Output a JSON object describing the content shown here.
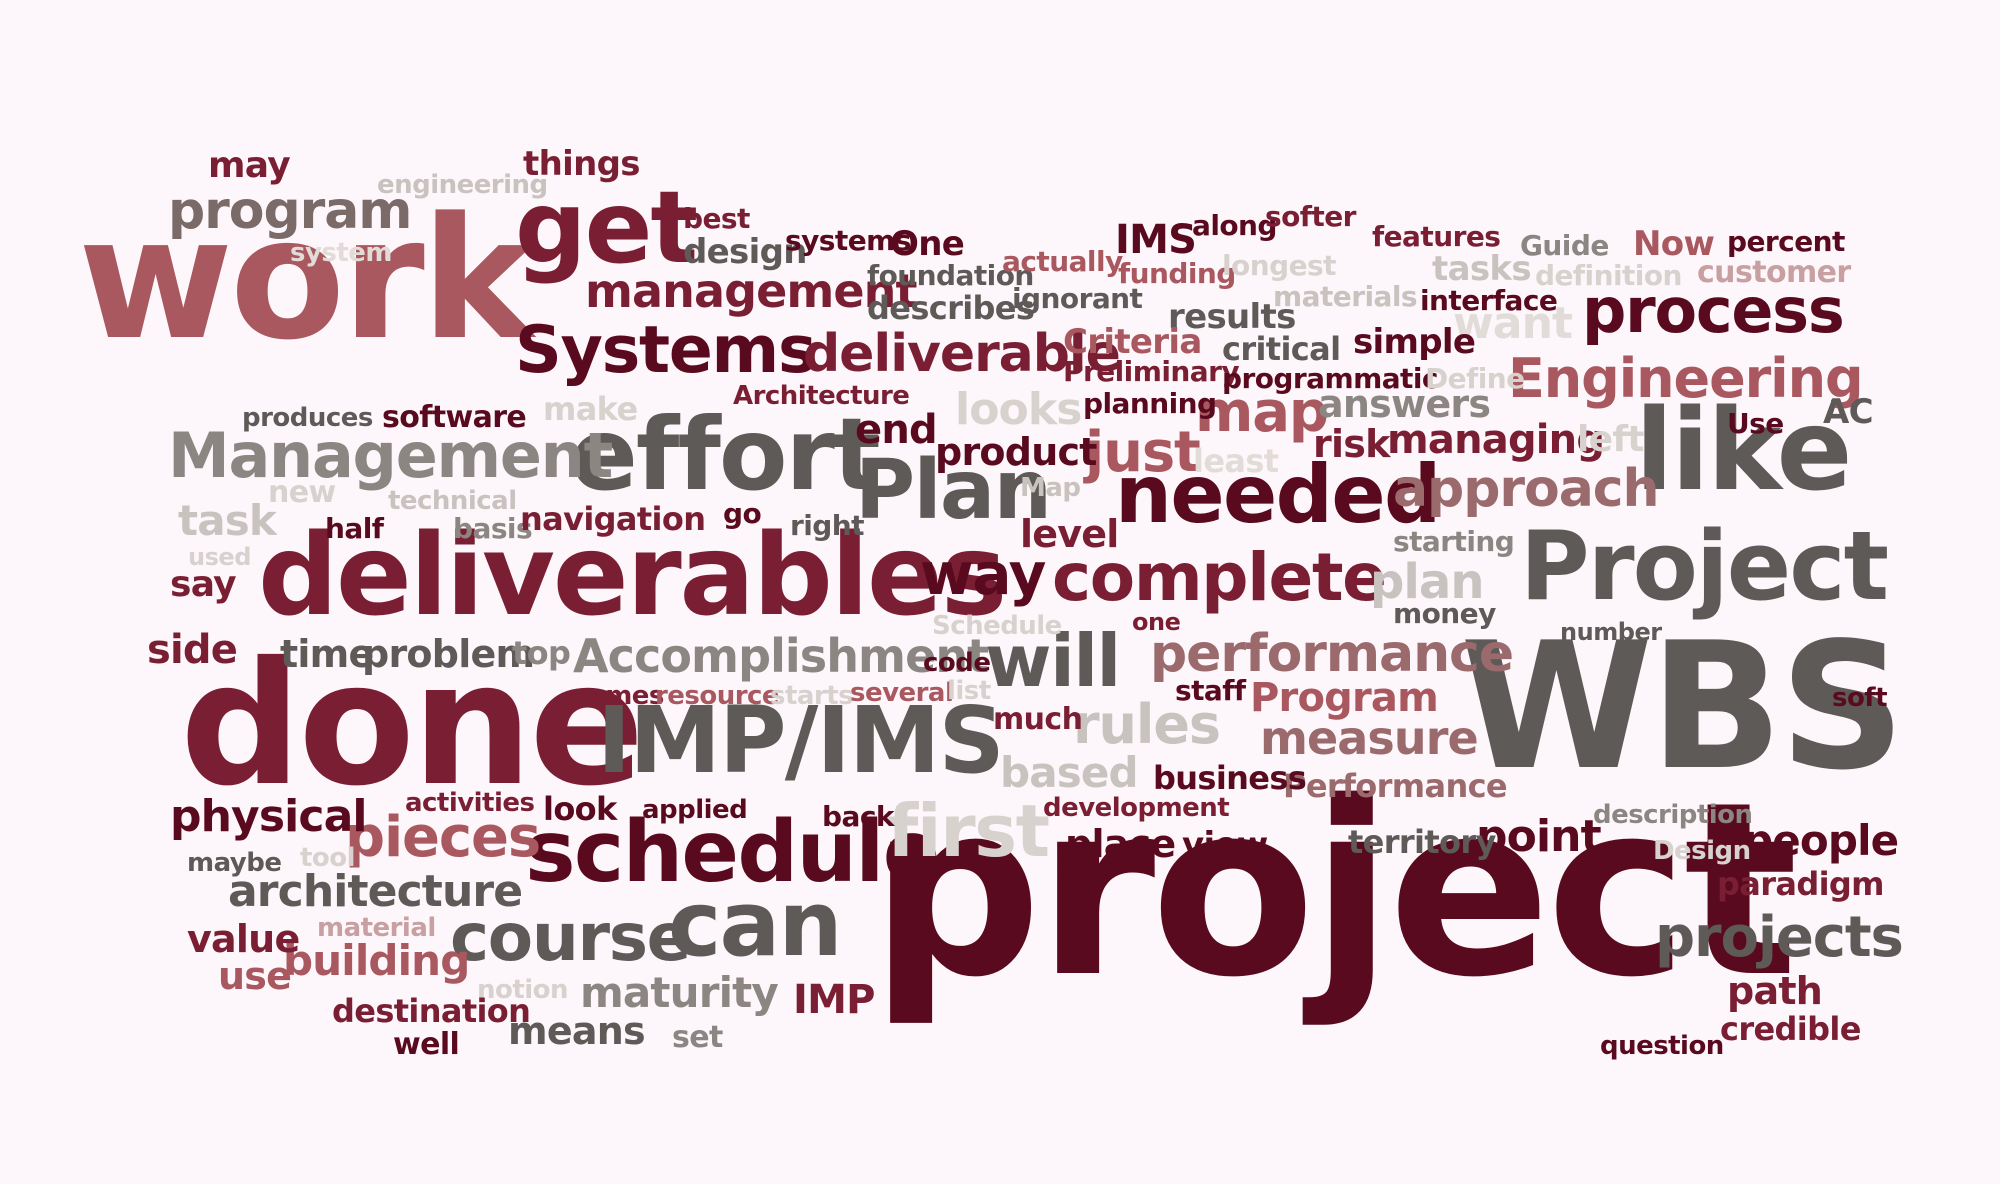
{
  "words": [
    {
      "text": "work",
      "color": "#a8585e"
    },
    {
      "text": "project",
      "color": "#5a0a1e"
    },
    {
      "text": "WBS",
      "color": "#5e5a58"
    },
    {
      "text": "done",
      "color": "#7a1f33"
    },
    {
      "text": "deliverables",
      "color": "#7a1f33"
    },
    {
      "text": "effort",
      "color": "#5e5a58"
    },
    {
      "text": "get",
      "color": "#7a1f33"
    },
    {
      "text": "Project",
      "color": "#5e5a58"
    },
    {
      "text": "like",
      "color": "#5e5a58"
    },
    {
      "text": "Plan",
      "color": "#5e5a58"
    },
    {
      "text": "needed",
      "color": "#5a0a1e"
    },
    {
      "text": "IMP/IMS",
      "color": "#5e5a58"
    },
    {
      "text": "schedule",
      "color": "#5a0a1e"
    },
    {
      "text": "can",
      "color": "#5e5a58"
    },
    {
      "text": "Management",
      "color": "#8c8683"
    },
    {
      "text": "Systems",
      "color": "#5a0a1e"
    },
    {
      "text": "complete",
      "color": "#7a1f33"
    },
    {
      "text": "process",
      "color": "#5a0a1e"
    },
    {
      "text": "will",
      "color": "#5e5a58"
    },
    {
      "text": "course",
      "color": "#5e5a58"
    },
    {
      "text": "program",
      "color": "#7a6a68"
    },
    {
      "text": "deliverable",
      "color": "#7a1f33"
    },
    {
      "text": "management",
      "color": "#7a1f33"
    },
    {
      "text": "Engineering",
      "color": "#a8585e"
    },
    {
      "text": "Accomplishment",
      "color": "#8c8683"
    },
    {
      "text": "performance",
      "color": "#9a6a6c"
    },
    {
      "text": "approach",
      "color": "#9a6a6c"
    },
    {
      "text": "map",
      "color": "#a8585e"
    },
    {
      "text": "just",
      "color": "#a8585e"
    },
    {
      "text": "way",
      "color": "#5a0a1e"
    },
    {
      "text": "pieces",
      "color": "#a8585e"
    },
    {
      "text": "first",
      "color": "#d8d2ce"
    },
    {
      "text": "projects",
      "color": "#5e5a58"
    },
    {
      "text": "measure",
      "color": "#9a6a6c"
    },
    {
      "text": "rules",
      "color": "#c9c3bf"
    },
    {
      "text": "architecture",
      "color": "#5e5a58"
    },
    {
      "text": "maturity",
      "color": "#8c8683"
    },
    {
      "text": "physical",
      "color": "#5a0a1e"
    },
    {
      "text": "building",
      "color": "#a8585e"
    },
    {
      "text": "plan",
      "color": "#c9c3bf"
    },
    {
      "text": "point",
      "color": "#5a0a1e"
    },
    {
      "text": "people",
      "color": "#5a0a1e"
    },
    {
      "text": "product",
      "color": "#5a0a1e"
    },
    {
      "text": "end",
      "color": "#5a0a1e"
    },
    {
      "text": "based",
      "color": "#c9c3bf"
    },
    {
      "text": "Program",
      "color": "#a8585e"
    },
    {
      "text": "managing",
      "color": "#7a1f33"
    },
    {
      "text": "answers",
      "color": "#8c8683"
    },
    {
      "text": "looks",
      "color": "#d8d2ce"
    },
    {
      "text": "task",
      "color": "#c9c3bf"
    },
    {
      "text": "side",
      "color": "#7a1f33"
    },
    {
      "text": "time",
      "color": "#5e5a58"
    },
    {
      "text": "problem",
      "color": "#5e5a58"
    },
    {
      "text": "value",
      "color": "#7a1f33"
    },
    {
      "text": "use",
      "color": "#a8585e"
    },
    {
      "text": "path",
      "color": "#7a1f33"
    },
    {
      "text": "credible",
      "color": "#7a1f33"
    },
    {
      "text": "paradigm",
      "color": "#7a1f33"
    },
    {
      "text": "means",
      "color": "#5e5a58"
    },
    {
      "text": "IMP",
      "color": "#7a1f33"
    },
    {
      "text": "place",
      "color": "#5a0a1e"
    },
    {
      "text": "view",
      "color": "#5a0a1e"
    },
    {
      "text": "territory",
      "color": "#5e5a58"
    },
    {
      "text": "Performance",
      "color": "#9a6a6c"
    },
    {
      "text": "business",
      "color": "#5a0a1e"
    },
    {
      "text": "level",
      "color": "#7a1f33"
    },
    {
      "text": "software",
      "color": "#5a0a1e"
    },
    {
      "text": "may",
      "color": "#7a1f33"
    },
    {
      "text": "things",
      "color": "#7a1f33"
    },
    {
      "text": "engineering",
      "color": "#c9c3bf"
    },
    {
      "text": "system",
      "color": "#d8d2ce"
    },
    {
      "text": "best",
      "color": "#7a1f33"
    },
    {
      "text": "design",
      "color": "#5e5a58"
    },
    {
      "text": "systems",
      "color": "#5a0a1e"
    },
    {
      "text": "One",
      "color": "#5a0a1e"
    },
    {
      "text": "foundation",
      "color": "#5e5a58"
    },
    {
      "text": "describes",
      "color": "#5e5a58"
    },
    {
      "text": "actually",
      "color": "#a8585e"
    },
    {
      "text": "ignorant",
      "color": "#5e5a58"
    },
    {
      "text": "IMS",
      "color": "#5a0a1e"
    },
    {
      "text": "along",
      "color": "#5a0a1e"
    },
    {
      "text": "softer",
      "color": "#7a1f33"
    },
    {
      "text": "funding",
      "color": "#a8585e"
    },
    {
      "text": "longest",
      "color": "#d8d2ce"
    },
    {
      "text": "materials",
      "color": "#c9c3bf"
    },
    {
      "text": "features",
      "color": "#7a1f33"
    },
    {
      "text": "Guide",
      "color": "#8c8683"
    },
    {
      "text": "Now",
      "color": "#a8585e"
    },
    {
      "text": "percent",
      "color": "#5a0a1e"
    },
    {
      "text": "tasks",
      "color": "#c9c3bf"
    },
    {
      "text": "definition",
      "color": "#d8d2ce"
    },
    {
      "text": "customer",
      "color": "#c9a0a2"
    },
    {
      "text": "interface",
      "color": "#5a0a1e"
    },
    {
      "text": "results",
      "color": "#5e5a58"
    },
    {
      "text": "want",
      "color": "#e2dcd8"
    },
    {
      "text": "Criteria",
      "color": "#a8585e"
    },
    {
      "text": "critical",
      "color": "#5e5a58"
    },
    {
      "text": "simple",
      "color": "#5a0a1e"
    },
    {
      "text": "Preliminary",
      "color": "#7a1f33"
    },
    {
      "text": "programmatic",
      "color": "#5a0a1e"
    },
    {
      "text": "Define",
      "color": "#d8d2ce"
    },
    {
      "text": "Architecture",
      "color": "#7a1f33"
    },
    {
      "text": "produces",
      "color": "#5e5a58"
    },
    {
      "text": "make",
      "color": "#d8d2ce"
    },
    {
      "text": "planning",
      "color": "#5a0a1e"
    },
    {
      "text": "Use",
      "color": "#5a0a1e"
    },
    {
      "text": "AC",
      "color": "#5e5a58"
    },
    {
      "text": "risk",
      "color": "#7a1f33"
    },
    {
      "text": "left",
      "color": "#d8d2ce"
    },
    {
      "text": "least",
      "color": "#e2dcd8"
    },
    {
      "text": "new",
      "color": "#d8d2ce"
    },
    {
      "text": "technical",
      "color": "#c9c3bf"
    },
    {
      "text": "Map",
      "color": "#c9c3bf"
    },
    {
      "text": "half",
      "color": "#5a0a1e"
    },
    {
      "text": "basis",
      "color": "#8c8683"
    },
    {
      "text": "navigation",
      "color": "#7a1f33"
    },
    {
      "text": "go",
      "color": "#5a0a1e"
    },
    {
      "text": "right",
      "color": "#5e5a58"
    },
    {
      "text": "used",
      "color": "#d8d2ce"
    },
    {
      "text": "starting",
      "color": "#8c8683"
    },
    {
      "text": "say",
      "color": "#7a1f33"
    },
    {
      "text": "money",
      "color": "#5e5a58"
    },
    {
      "text": "Schedule",
      "color": "#d8d2ce"
    },
    {
      "text": "one",
      "color": "#7a1f33"
    },
    {
      "text": "number",
      "color": "#5e5a58"
    },
    {
      "text": "top",
      "color": "#8c8683"
    },
    {
      "text": "code",
      "color": "#5a0a1e"
    },
    {
      "text": "comes",
      "color": "#7a1f33"
    },
    {
      "text": "resource",
      "color": "#a8585e"
    },
    {
      "text": "starts",
      "color": "#d8d2ce"
    },
    {
      "text": "several",
      "color": "#a8585e"
    },
    {
      "text": "list",
      "color": "#d8d2ce"
    },
    {
      "text": "staff",
      "color": "#5a0a1e"
    },
    {
      "text": "soft",
      "color": "#5a0a1e"
    },
    {
      "text": "much",
      "color": "#7a1f33"
    },
    {
      "text": "activities",
      "color": "#7a1f33"
    },
    {
      "text": "look",
      "color": "#5a0a1e"
    },
    {
      "text": "applied",
      "color": "#5a0a1e"
    },
    {
      "text": "back",
      "color": "#5a0a1e"
    },
    {
      "text": "development",
      "color": "#7a1f33"
    },
    {
      "text": "description",
      "color": "#8c8683"
    },
    {
      "text": "Design",
      "color": "#d8d2ce"
    },
    {
      "text": "maybe",
      "color": "#5e5a58"
    },
    {
      "text": "tool",
      "color": "#d8d2ce"
    },
    {
      "text": "material",
      "color": "#c9a0a2"
    },
    {
      "text": "notion",
      "color": "#d8d2ce"
    },
    {
      "text": "destination",
      "color": "#7a1f33"
    },
    {
      "text": "well",
      "color": "#5a0a1e"
    },
    {
      "text": "set",
      "color": "#8c8683"
    },
    {
      "text": "question",
      "color": "#5a0a1e"
    }
  ]
}
